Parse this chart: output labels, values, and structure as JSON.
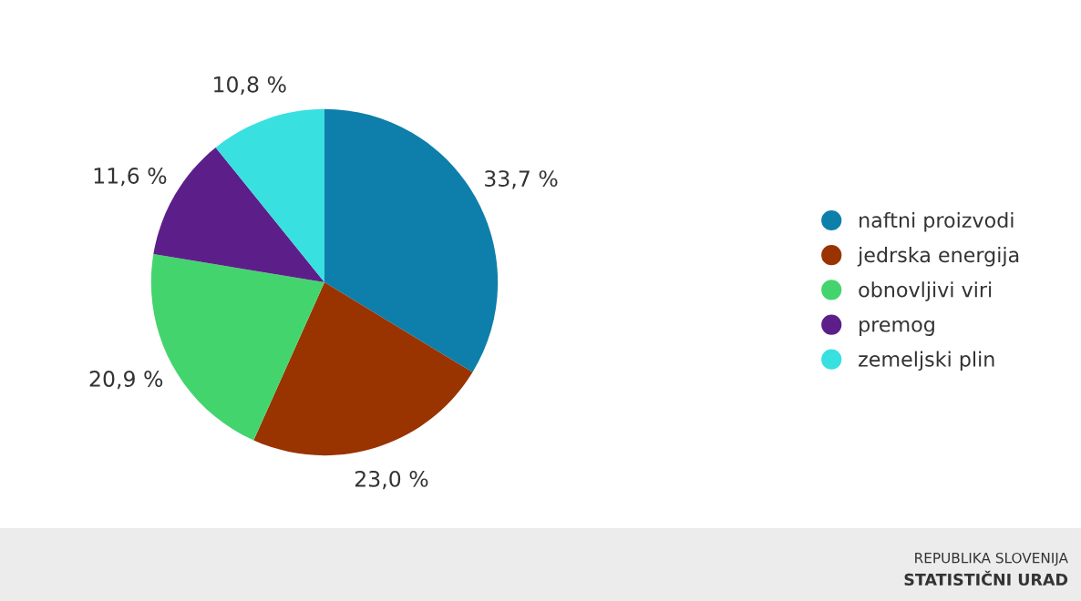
{
  "chart_data": {
    "type": "pie",
    "categories": [
      "naftni proizvodi",
      "jedrska energija",
      "obnovljivi viri",
      "premog",
      "zemeljski plin"
    ],
    "values": [
      33.7,
      23.0,
      20.9,
      11.6,
      10.8
    ],
    "colors": [
      "#0e7fab",
      "#993300",
      "#44d46e",
      "#5c1f8a",
      "#38e0e0"
    ],
    "value_labels": [
      "33,7 %",
      "23,0 %",
      "20,9 %",
      "11,6 %",
      "10,8 %"
    ],
    "legend": "right",
    "annotations": [
      "REPUBLIKA SLOVENIJA",
      "STATISTIČNI URAD"
    ]
  }
}
